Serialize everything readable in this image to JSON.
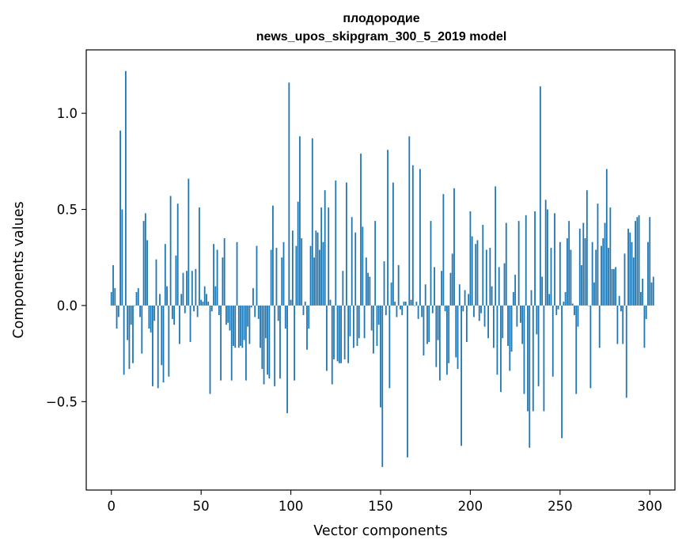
{
  "chart_data": {
    "type": "bar",
    "title": "плодородие",
    "subtitle": "news_upos_skipgram_300_5_2019 model",
    "xlabel": "Vector components",
    "ylabel": "Components values",
    "xlim": [
      -14,
      314
    ],
    "ylim": [
      -0.96,
      1.33
    ],
    "xticks": [
      0,
      50,
      100,
      150,
      200,
      250,
      300
    ],
    "yticks": [
      -0.5,
      0.0,
      0.5,
      1.0
    ],
    "ytick_labels": [
      "−0.5",
      "0.0",
      "0.5",
      "1.0"
    ],
    "bar_color": "#1f77b4",
    "x_start": 0,
    "values": [
      0.07,
      0.21,
      0.09,
      -0.12,
      -0.06,
      0.91,
      0.5,
      -0.36,
      1.22,
      -0.18,
      -0.33,
      -0.1,
      -0.3,
      0.0,
      0.07,
      0.09,
      -0.06,
      -0.25,
      0.44,
      0.48,
      0.34,
      -0.12,
      -0.14,
      -0.42,
      -0.08,
      0.24,
      -0.43,
      0.06,
      -0.31,
      -0.4,
      0.32,
      0.1,
      -0.37,
      0.57,
      -0.07,
      -0.1,
      0.26,
      0.53,
      -0.2,
      0.06,
      0.17,
      -0.04,
      0.18,
      0.66,
      -0.19,
      0.18,
      -0.03,
      0.19,
      -0.06,
      0.51,
      0.03,
      0.02,
      0.1,
      0.06,
      0.02,
      -0.46,
      -0.03,
      0.32,
      0.1,
      0.29,
      -0.05,
      -0.39,
      0.25,
      0.35,
      -0.1,
      -0.09,
      -0.13,
      -0.39,
      -0.21,
      -0.22,
      0.33,
      -0.22,
      -0.21,
      -0.22,
      -0.18,
      -0.39,
      -0.11,
      -0.2,
      -0.01,
      0.09,
      -0.06,
      0.31,
      -0.07,
      -0.22,
      -0.33,
      -0.41,
      -0.17,
      -0.36,
      -0.38,
      0.29,
      0.52,
      -0.42,
      0.3,
      -0.08,
      -0.38,
      0.25,
      0.33,
      -0.12,
      -0.56,
      1.16,
      0.03,
      0.39,
      -0.39,
      0.31,
      0.54,
      0.88,
      0.35,
      -0.05,
      0.02,
      -0.23,
      -0.12,
      0.31,
      0.87,
      0.25,
      0.39,
      0.38,
      0.29,
      0.51,
      0.33,
      0.6,
      -0.34,
      0.51,
      0.03,
      -0.41,
      -0.28,
      0.65,
      -0.29,
      -0.3,
      -0.3,
      0.18,
      -0.28,
      0.64,
      -0.3,
      -0.16,
      0.46,
      -0.22,
      0.38,
      -0.21,
      -0.17,
      0.79,
      0.41,
      -0.17,
      0.25,
      0.17,
      0.15,
      -0.13,
      -0.25,
      0.44,
      -0.21,
      -0.1,
      -0.53,
      -0.84,
      0.23,
      -0.05,
      0.81,
      -0.43,
      0.12,
      0.64,
      0.02,
      -0.06,
      0.21,
      -0.02,
      -0.05,
      0.02,
      0.02,
      -0.79,
      0.88,
      0.03,
      0.73,
      0.0,
      0.02,
      -0.07,
      0.71,
      -0.06,
      -0.26,
      0.11,
      -0.2,
      -0.19,
      0.44,
      -0.04,
      0.2,
      -0.32,
      -0.18,
      -0.39,
      0.18,
      0.58,
      -0.03,
      -0.36,
      -0.3,
      0.17,
      0.27,
      0.61,
      -0.27,
      -0.33,
      0.11,
      -0.73,
      -0.03,
      0.08,
      -0.19,
      0.06,
      0.49,
      0.36,
      -0.06,
      0.32,
      0.34,
      -0.08,
      -0.04,
      0.42,
      -0.11,
      0.29,
      -0.17,
      0.3,
      0.1,
      -0.22,
      0.62,
      -0.36,
      0.2,
      -0.45,
      -0.17,
      0.22,
      0.43,
      -0.21,
      -0.34,
      -0.24,
      0.07,
      0.16,
      -0.11,
      0.44,
      -0.09,
      -0.2,
      -0.46,
      0.47,
      -0.55,
      -0.74,
      0.08,
      -0.55,
      0.49,
      -0.15,
      -0.42,
      1.14,
      0.15,
      -0.55,
      0.55,
      0.5,
      0.06,
      0.3,
      -0.37,
      0.48,
      -0.05,
      -0.02,
      0.33,
      -0.69,
      0.02,
      0.07,
      0.35,
      0.44,
      0.29,
      0.01,
      -0.05,
      -0.46,
      -0.11,
      0.4,
      0.21,
      0.43,
      0.35,
      0.6,
      0.0,
      -0.43,
      0.33,
      0.12,
      0.29,
      0.53,
      -0.22,
      0.31,
      0.35,
      0.43,
      0.71,
      0.3,
      0.51,
      0.19,
      0.19,
      0.2,
      -0.2,
      0.05,
      -0.03,
      -0.2,
      0.27,
      -0.48,
      0.4,
      0.38,
      0.33,
      0.25,
      0.44,
      0.46,
      0.47,
      0.07,
      0.14,
      -0.22,
      -0.07,
      0.33,
      0.46,
      0.12,
      0.15
    ]
  }
}
